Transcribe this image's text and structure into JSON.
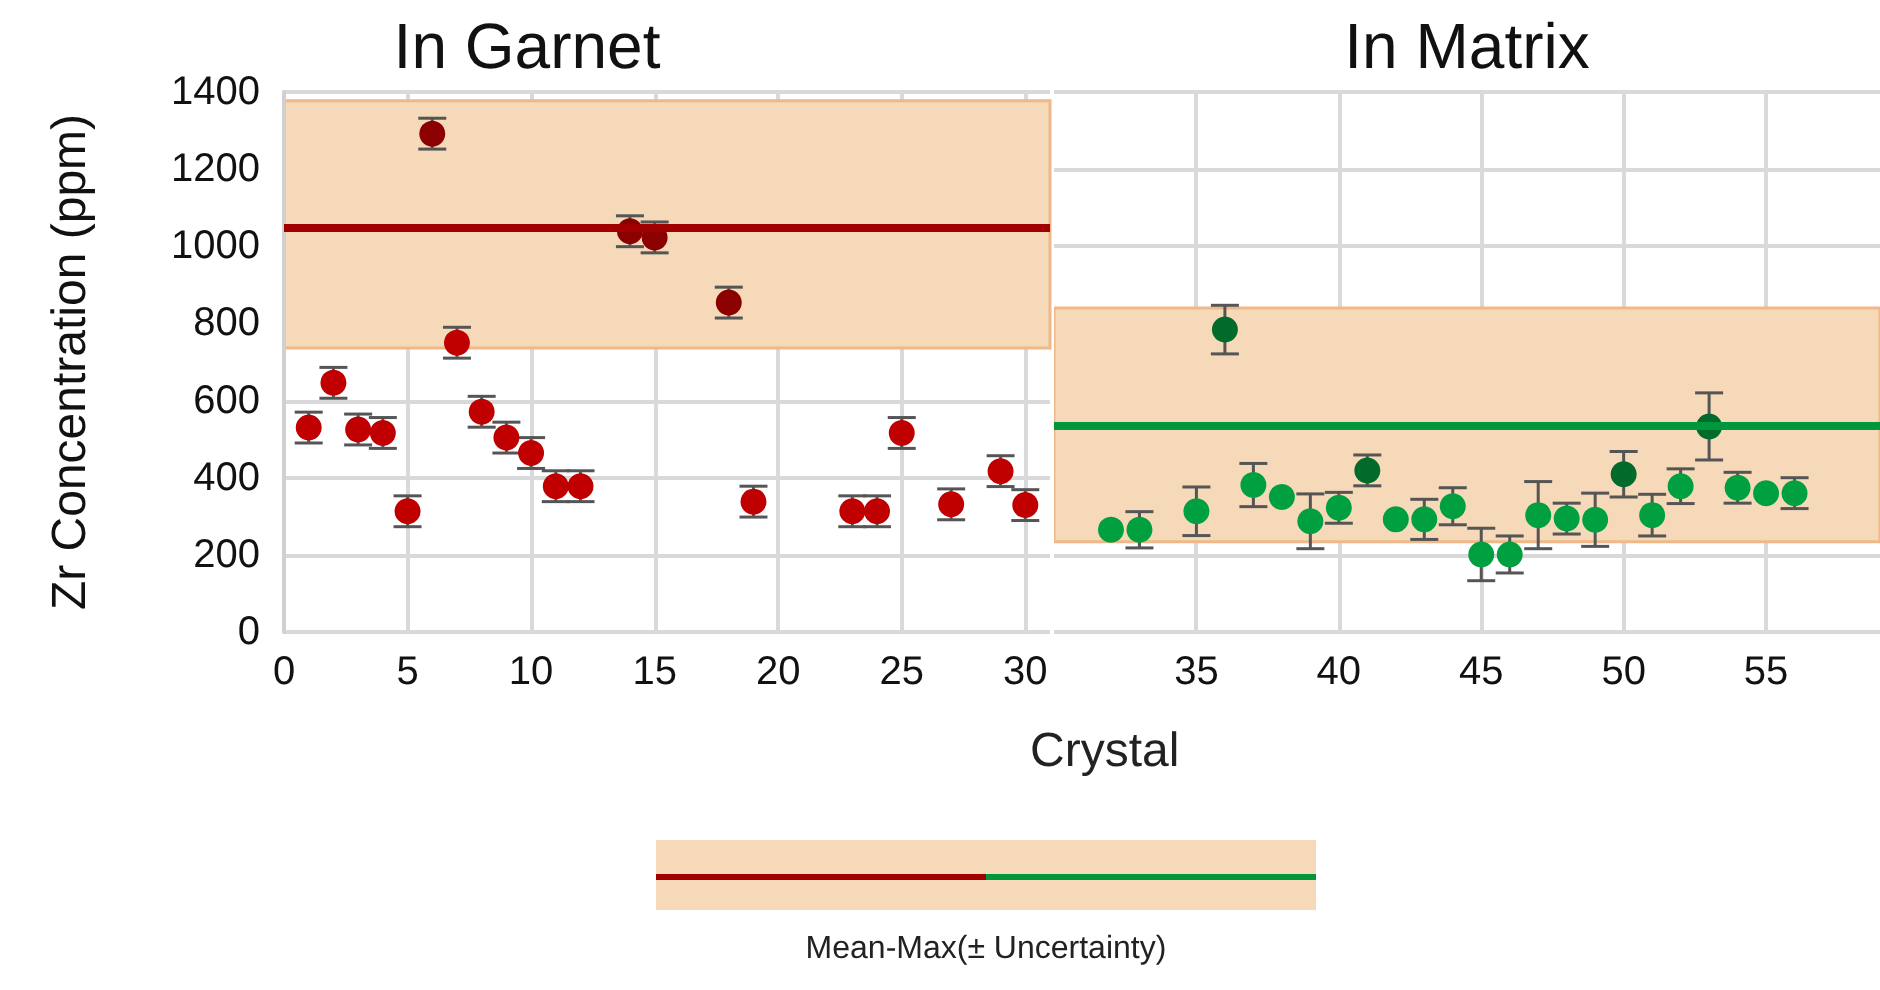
{
  "chart_data": [
    {
      "type": "scatter",
      "title": "In Garnet",
      "ylabel": "Zr Concentration (ppm)",
      "xlabel": "Crystal",
      "marker": "circle",
      "grid": true,
      "xlim": [
        0,
        31
      ],
      "xticks": [
        0,
        5,
        10,
        15,
        20,
        25,
        30
      ],
      "ylim": [
        0,
        1400
      ],
      "yticks": [
        0,
        200,
        400,
        600,
        800,
        1000,
        1200,
        1400
      ],
      "series": [
        {
          "x": [
            1,
            2,
            3,
            4,
            5,
            6,
            7,
            8,
            9,
            10,
            11,
            12,
            14,
            15,
            18,
            19,
            23,
            24,
            25,
            27,
            29,
            30
          ],
          "values": [
            530,
            646,
            525,
            516,
            313,
            1292,
            750,
            571,
            504,
            464,
            378,
            378,
            1039,
            1023,
            854,
            338,
            313,
            313,
            516,
            331,
            417,
            329
          ],
          "colors": [
            "#c00000",
            "#c00000",
            "#c00000",
            "#c00000",
            "#c00000",
            "#8b0000",
            "#c00000",
            "#c00000",
            "#c00000",
            "#c00000",
            "#c00000",
            "#c00000",
            "#8b0000",
            "#8b0000",
            "#8b0000",
            "#c00000",
            "#c00000",
            "#c00000",
            "#c00000",
            "#c00000",
            "#c00000",
            "#c00000"
          ],
          "errors": [
            40,
            40,
            40,
            40,
            40,
            40,
            40,
            40,
            40,
            40,
            40,
            40,
            40,
            40,
            40,
            40,
            40,
            40,
            40,
            40,
            40,
            40
          ]
        }
      ],
      "ref_lines": [
        {
          "axis": "y",
          "value": 1050,
          "color": "#a00000"
        }
      ],
      "bands": [
        {
          "axis": "y",
          "from": 736,
          "to": 1377,
          "color": "#f5d9b8"
        }
      ]
    },
    {
      "type": "scatter",
      "title": "In Matrix",
      "marker": "circle",
      "grid": true,
      "tick_labels": "x",
      "annotations": [
        "Mean-Max(± Uncertainty)"
      ],
      "xlim": [
        30,
        59
      ],
      "xticks": [
        35,
        40,
        45,
        50,
        55
      ],
      "ylim": [
        0,
        1400
      ],
      "yticks": [
        0,
        200,
        400,
        600,
        800,
        1000,
        1200,
        1400
      ],
      "series": [
        {
          "x": [
            32,
            33,
            35,
            36,
            37,
            38,
            39,
            40,
            41,
            42,
            43,
            44,
            45,
            46,
            47,
            48,
            49,
            50,
            51,
            52,
            53,
            54,
            55,
            56
          ],
          "values": [
            265,
            265,
            313,
            784,
            381,
            350,
            287,
            322,
            419,
            292,
            292,
            326,
            201,
            201,
            303,
            294,
            291,
            409,
            303,
            378,
            533,
            374,
            360,
            360
          ],
          "colors": [
            "#00a040",
            "#00a040",
            "#00a040",
            "#006b2a",
            "#00a040",
            "#00a040",
            "#00a040",
            "#00a040",
            "#006b2a",
            "#00a040",
            "#00a040",
            "#00a040",
            "#00a040",
            "#00a040",
            "#00a040",
            "#00a040",
            "#00a040",
            "#006b2a",
            "#00a040",
            "#00a040",
            "#006b2a",
            "#00a040",
            "#00a040",
            "#00a040"
          ],
          "errors": [
            null,
            47,
            63,
            63,
            56,
            null,
            71,
            40,
            40,
            null,
            52,
            48,
            68,
            48,
            87,
            40,
            69,
            59,
            54,
            45,
            87,
            40,
            null,
            40
          ]
        }
      ],
      "ref_lines": [
        {
          "axis": "y",
          "value": 537,
          "color": "#00963c"
        }
      ],
      "bands": [
        {
          "axis": "y",
          "from": 234,
          "to": 840,
          "color": "#f5d9b8"
        }
      ]
    }
  ]
}
